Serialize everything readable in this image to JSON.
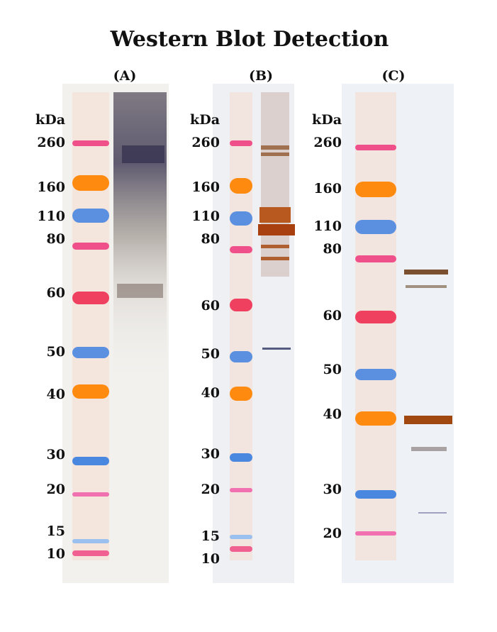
{
  "title": "Western Blot Detection",
  "panels": [
    {
      "label": "(A)",
      "unit": "kDa",
      "markers": [
        "260",
        "160",
        "110",
        "80",
        "60",
        "50",
        "40",
        "30",
        "20",
        "15",
        "10"
      ]
    },
    {
      "label": "(B)",
      "unit": "kDa",
      "markers": [
        "260",
        "160",
        "110",
        "80",
        "60",
        "50",
        "40",
        "30",
        "20",
        "15",
        "10"
      ]
    },
    {
      "label": "(C)",
      "unit": "kDa",
      "markers": [
        "260",
        "160",
        "110",
        "80",
        "60",
        "50",
        "40",
        "30",
        "20"
      ]
    }
  ]
}
